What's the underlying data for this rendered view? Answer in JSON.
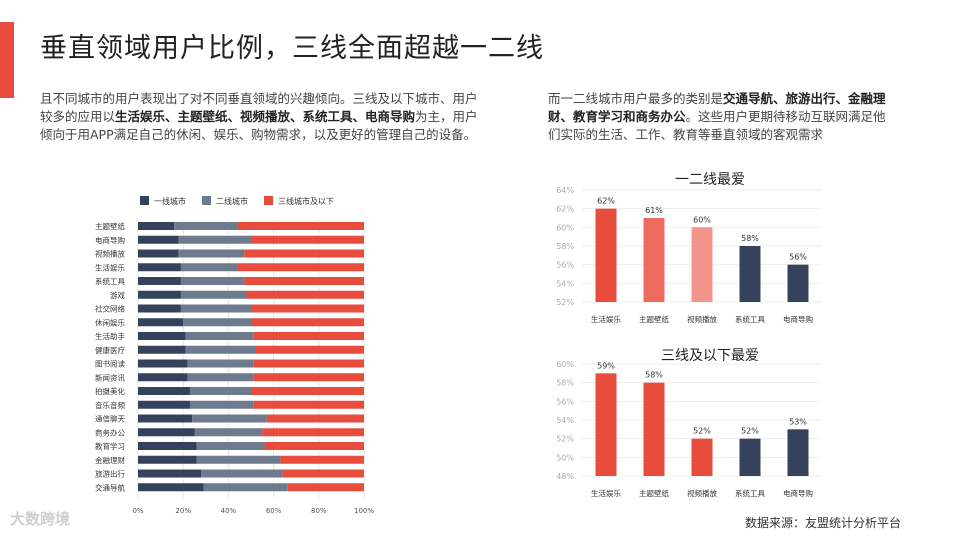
{
  "title": "垂直领域用户比例，三线全面超越一二线",
  "left_text": {
    "part1": "且不同城市的用户表现出了对不同垂直领域的兴趣倾向。三线及以下城市、用户较多的应用以",
    "bold1": "生活娱乐、主题壁纸、视频播放、系统工具、电商导购",
    "part2": "为主，用户倾向于用APP满足自己的休闲、娱乐、购物需求，以及更好的管理自己的设备。"
  },
  "right_text": {
    "part1": "而一二线城市用户最多的类别是",
    "bold1": "交通导航、旅游出行、金融理财、教育学习和商务办公",
    "part2": "。这些用户更期待移动互联网满足他们实际的生活、工作、教育等垂直领域的客观需求"
  },
  "source": "数据来源：友盟统计分析平台",
  "watermark": "大数跨境",
  "colors": {
    "tier1": "#36415c",
    "tier2": "#6e7a8e",
    "tier3": "#e84c3d",
    "accent": "#e84c3d"
  },
  "chart_data": [
    {
      "type": "bar",
      "orientation": "horizontal",
      "stacked": "percent",
      "title": "",
      "categories": [
        "主题壁纸",
        "电商导购",
        "视频播放",
        "生活娱乐",
        "系统工具",
        "游戏",
        "社交网络",
        "休闲娱乐",
        "生活助手",
        "健康医疗",
        "图书阅读",
        "新闻资讯",
        "拍摄美化",
        "音乐音频",
        "通信聊天",
        "商务办公",
        "教育学习",
        "金融理财",
        "旅游出行",
        "交通导航"
      ],
      "series": [
        {
          "name": "一线城市",
          "color": "#36415c",
          "values": [
            16,
            18,
            18,
            19,
            19,
            19,
            19,
            20,
            21,
            21,
            22,
            22,
            23,
            23,
            24,
            25,
            26,
            26,
            28,
            29
          ]
        },
        {
          "name": "二线城市",
          "color": "#6e7a8e",
          "values": [
            28,
            32,
            29,
            25,
            28,
            29,
            31,
            30,
            30,
            31,
            29,
            29,
            27,
            28,
            33,
            30,
            30,
            37,
            36,
            37
          ]
        },
        {
          "name": "三线城市及以下",
          "color": "#e84c3d",
          "values": [
            56,
            50,
            53,
            56,
            53,
            52,
            50,
            50,
            49,
            48,
            49,
            49,
            50,
            49,
            43,
            45,
            44,
            37,
            36,
            34
          ]
        }
      ],
      "xticks": [
        "0%",
        "20%",
        "40%",
        "60%",
        "80%",
        "100%"
      ],
      "xlim": [
        0,
        100
      ],
      "legend": "top"
    },
    {
      "type": "bar",
      "title": "一二线最爱",
      "categories": [
        "生活娱乐",
        "主题壁纸",
        "视频播放",
        "系统工具",
        "电商导购"
      ],
      "values": [
        62,
        61,
        60,
        58,
        56
      ],
      "labels": [
        "62%",
        "61%",
        "60%",
        "58%",
        "56%"
      ],
      "colors": [
        "#e84c3d",
        "#ed6a5f",
        "#f4958c",
        "#36415c",
        "#36415c"
      ],
      "yticks": [
        "64%",
        "62%",
        "60%",
        "58%",
        "56%",
        "54%",
        "52%"
      ],
      "ylim": [
        52,
        64
      ]
    },
    {
      "type": "bar",
      "title": "三线及以下最爱",
      "categories": [
        "生活娱乐",
        "主题壁纸",
        "视频播放",
        "系统工具",
        "电商导购"
      ],
      "values": [
        59,
        58,
        52,
        52,
        53
      ],
      "labels": [
        "59%",
        "58%",
        "52%",
        "52%",
        "53%"
      ],
      "colors": [
        "#e84c3d",
        "#e84c3d",
        "#e84c3d",
        "#36415c",
        "#36415c"
      ],
      "yticks": [
        "60%",
        "58%",
        "56%",
        "54%",
        "52%",
        "50%",
        "48%"
      ],
      "ylim": [
        48,
        60
      ]
    }
  ]
}
